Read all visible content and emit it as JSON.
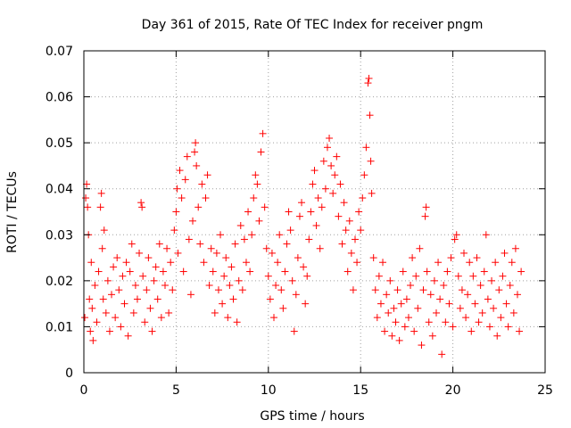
{
  "chart_data": {
    "type": "scatter",
    "title": "Day 361 of 2015, Rate Of TEC Index for receiver pngm",
    "xlabel": "GPS time / hours",
    "ylabel": "ROTI / TECUs",
    "xlim": [
      0,
      25
    ],
    "ylim": [
      0,
      0.07
    ],
    "xticks": [
      0,
      5,
      10,
      15,
      20,
      25
    ],
    "xtick_labels": [
      "0",
      "5",
      "10",
      "15",
      "20",
      "25"
    ],
    "yticks": [
      0,
      0.01,
      0.02,
      0.03,
      0.04,
      0.05,
      0.06,
      0.07
    ],
    "ytick_labels": [
      "0",
      "0.01",
      "0.02",
      "0.03",
      "0.04",
      "0.05",
      "0.06",
      "0.07"
    ],
    "grid": true,
    "marker": "plus",
    "series": [
      {
        "name": "ROTI",
        "color": "#ff0000",
        "points": [
          [
            0.05,
            0.012
          ],
          [
            0.1,
            0.038
          ],
          [
            0.15,
            0.041
          ],
          [
            0.2,
            0.036
          ],
          [
            0.25,
            0.03
          ],
          [
            0.3,
            0.016
          ],
          [
            0.35,
            0.009
          ],
          [
            0.4,
            0.024
          ],
          [
            0.45,
            0.014
          ],
          [
            0.5,
            0.007
          ],
          [
            0.6,
            0.019
          ],
          [
            0.7,
            0.011
          ],
          [
            0.8,
            0.022
          ],
          [
            0.9,
            0.036
          ],
          [
            0.95,
            0.039
          ],
          [
            1.0,
            0.027
          ],
          [
            1.05,
            0.016
          ],
          [
            1.1,
            0.031
          ],
          [
            1.2,
            0.013
          ],
          [
            1.3,
            0.02
          ],
          [
            1.4,
            0.009
          ],
          [
            1.5,
            0.017
          ],
          [
            1.6,
            0.023
          ],
          [
            1.7,
            0.012
          ],
          [
            1.8,
            0.025
          ],
          [
            1.9,
            0.018
          ],
          [
            2.0,
            0.01
          ],
          [
            2.1,
            0.021
          ],
          [
            2.2,
            0.015
          ],
          [
            2.3,
            0.024
          ],
          [
            2.4,
            0.008
          ],
          [
            2.5,
            0.022
          ],
          [
            2.6,
            0.028
          ],
          [
            2.7,
            0.013
          ],
          [
            2.8,
            0.019
          ],
          [
            2.9,
            0.016
          ],
          [
            3.0,
            0.026
          ],
          [
            3.1,
            0.037
          ],
          [
            3.15,
            0.036
          ],
          [
            3.2,
            0.021
          ],
          [
            3.3,
            0.011
          ],
          [
            3.4,
            0.018
          ],
          [
            3.5,
            0.025
          ],
          [
            3.6,
            0.014
          ],
          [
            3.7,
            0.009
          ],
          [
            3.8,
            0.02
          ],
          [
            3.9,
            0.023
          ],
          [
            4.0,
            0.016
          ],
          [
            4.1,
            0.028
          ],
          [
            4.2,
            0.012
          ],
          [
            4.3,
            0.022
          ],
          [
            4.4,
            0.019
          ],
          [
            4.5,
            0.027
          ],
          [
            4.6,
            0.013
          ],
          [
            4.7,
            0.024
          ],
          [
            4.8,
            0.018
          ],
          [
            4.9,
            0.031
          ],
          [
            5.0,
            0.035
          ],
          [
            5.05,
            0.04
          ],
          [
            5.1,
            0.026
          ],
          [
            5.2,
            0.044
          ],
          [
            5.3,
            0.038
          ],
          [
            5.4,
            0.022
          ],
          [
            5.5,
            0.042
          ],
          [
            5.6,
            0.047
          ],
          [
            5.7,
            0.029
          ],
          [
            5.8,
            0.017
          ],
          [
            5.9,
            0.033
          ],
          [
            6.0,
            0.048
          ],
          [
            6.05,
            0.05
          ],
          [
            6.1,
            0.045
          ],
          [
            6.2,
            0.036
          ],
          [
            6.3,
            0.028
          ],
          [
            6.4,
            0.041
          ],
          [
            6.5,
            0.024
          ],
          [
            6.6,
            0.038
          ],
          [
            6.7,
            0.043
          ],
          [
            6.8,
            0.019
          ],
          [
            6.9,
            0.027
          ],
          [
            7.0,
            0.022
          ],
          [
            7.1,
            0.013
          ],
          [
            7.2,
            0.026
          ],
          [
            7.3,
            0.018
          ],
          [
            7.4,
            0.03
          ],
          [
            7.5,
            0.015
          ],
          [
            7.6,
            0.021
          ],
          [
            7.7,
            0.025
          ],
          [
            7.8,
            0.012
          ],
          [
            7.9,
            0.019
          ],
          [
            8.0,
            0.023
          ],
          [
            8.1,
            0.016
          ],
          [
            8.2,
            0.028
          ],
          [
            8.3,
            0.011
          ],
          [
            8.4,
            0.02
          ],
          [
            8.5,
            0.032
          ],
          [
            8.6,
            0.018
          ],
          [
            8.7,
            0.029
          ],
          [
            8.8,
            0.024
          ],
          [
            8.9,
            0.035
          ],
          [
            9.0,
            0.022
          ],
          [
            9.1,
            0.03
          ],
          [
            9.2,
            0.038
          ],
          [
            9.3,
            0.043
          ],
          [
            9.4,
            0.041
          ],
          [
            9.5,
            0.033
          ],
          [
            9.6,
            0.048
          ],
          [
            9.7,
            0.052
          ],
          [
            9.8,
            0.036
          ],
          [
            9.9,
            0.027
          ],
          [
            10.0,
            0.021
          ],
          [
            10.1,
            0.016
          ],
          [
            10.2,
            0.026
          ],
          [
            10.3,
            0.012
          ],
          [
            10.4,
            0.019
          ],
          [
            10.5,
            0.024
          ],
          [
            10.6,
            0.03
          ],
          [
            10.7,
            0.018
          ],
          [
            10.8,
            0.014
          ],
          [
            10.9,
            0.022
          ],
          [
            11.0,
            0.028
          ],
          [
            11.1,
            0.035
          ],
          [
            11.2,
            0.031
          ],
          [
            11.3,
            0.02
          ],
          [
            11.4,
            0.009
          ],
          [
            11.5,
            0.017
          ],
          [
            11.6,
            0.025
          ],
          [
            11.7,
            0.034
          ],
          [
            11.8,
            0.037
          ],
          [
            11.9,
            0.023
          ],
          [
            12.0,
            0.015
          ],
          [
            12.1,
            0.021
          ],
          [
            12.2,
            0.029
          ],
          [
            12.3,
            0.035
          ],
          [
            12.4,
            0.041
          ],
          [
            12.5,
            0.044
          ],
          [
            12.6,
            0.032
          ],
          [
            12.7,
            0.038
          ],
          [
            12.8,
            0.027
          ],
          [
            12.9,
            0.036
          ],
          [
            13.0,
            0.046
          ],
          [
            13.1,
            0.04
          ],
          [
            13.2,
            0.049
          ],
          [
            13.3,
            0.051
          ],
          [
            13.4,
            0.045
          ],
          [
            13.5,
            0.039
          ],
          [
            13.6,
            0.043
          ],
          [
            13.7,
            0.047
          ],
          [
            13.8,
            0.034
          ],
          [
            13.9,
            0.041
          ],
          [
            14.0,
            0.028
          ],
          [
            14.1,
            0.037
          ],
          [
            14.2,
            0.031
          ],
          [
            14.3,
            0.022
          ],
          [
            14.4,
            0.033
          ],
          [
            14.5,
            0.026
          ],
          [
            14.6,
            0.018
          ],
          [
            14.7,
            0.029
          ],
          [
            14.8,
            0.024
          ],
          [
            14.9,
            0.035
          ],
          [
            15.0,
            0.031
          ],
          [
            15.1,
            0.038
          ],
          [
            15.2,
            0.043
          ],
          [
            15.3,
            0.049
          ],
          [
            15.4,
            0.063
          ],
          [
            15.45,
            0.064
          ],
          [
            15.5,
            0.056
          ],
          [
            15.55,
            0.046
          ],
          [
            15.6,
            0.039
          ],
          [
            15.7,
            0.025
          ],
          [
            15.8,
            0.018
          ],
          [
            15.9,
            0.012
          ],
          [
            16.0,
            0.021
          ],
          [
            16.1,
            0.015
          ],
          [
            16.2,
            0.024
          ],
          [
            16.3,
            0.009
          ],
          [
            16.4,
            0.017
          ],
          [
            16.5,
            0.013
          ],
          [
            16.6,
            0.02
          ],
          [
            16.7,
            0.008
          ],
          [
            16.8,
            0.014
          ],
          [
            16.9,
            0.011
          ],
          [
            17.0,
            0.018
          ],
          [
            17.1,
            0.007
          ],
          [
            17.2,
            0.015
          ],
          [
            17.3,
            0.022
          ],
          [
            17.4,
            0.01
          ],
          [
            17.5,
            0.016
          ],
          [
            17.6,
            0.012
          ],
          [
            17.7,
            0.019
          ],
          [
            17.8,
            0.025
          ],
          [
            17.9,
            0.009
          ],
          [
            18.0,
            0.021
          ],
          [
            18.1,
            0.014
          ],
          [
            18.2,
            0.027
          ],
          [
            18.3,
            0.006
          ],
          [
            18.4,
            0.018
          ],
          [
            18.5,
            0.034
          ],
          [
            18.55,
            0.036
          ],
          [
            18.6,
            0.022
          ],
          [
            18.7,
            0.011
          ],
          [
            18.8,
            0.017
          ],
          [
            18.9,
            0.008
          ],
          [
            19.0,
            0.02
          ],
          [
            19.1,
            0.013
          ],
          [
            19.2,
            0.024
          ],
          [
            19.3,
            0.016
          ],
          [
            19.4,
            0.004
          ],
          [
            19.5,
            0.019
          ],
          [
            19.6,
            0.011
          ],
          [
            19.7,
            0.022
          ],
          [
            19.8,
            0.015
          ],
          [
            19.9,
            0.025
          ],
          [
            20.0,
            0.01
          ],
          [
            20.1,
            0.029
          ],
          [
            20.2,
            0.03
          ],
          [
            20.3,
            0.021
          ],
          [
            20.4,
            0.014
          ],
          [
            20.5,
            0.018
          ],
          [
            20.6,
            0.026
          ],
          [
            20.7,
            0.012
          ],
          [
            20.8,
            0.017
          ],
          [
            20.9,
            0.024
          ],
          [
            21.0,
            0.009
          ],
          [
            21.1,
            0.021
          ],
          [
            21.2,
            0.015
          ],
          [
            21.3,
            0.025
          ],
          [
            21.4,
            0.011
          ],
          [
            21.5,
            0.019
          ],
          [
            21.6,
            0.013
          ],
          [
            21.7,
            0.022
          ],
          [
            21.8,
            0.03
          ],
          [
            21.9,
            0.016
          ],
          [
            22.0,
            0.01
          ],
          [
            22.1,
            0.02
          ],
          [
            22.2,
            0.014
          ],
          [
            22.3,
            0.024
          ],
          [
            22.4,
            0.008
          ],
          [
            22.5,
            0.018
          ],
          [
            22.6,
            0.012
          ],
          [
            22.7,
            0.021
          ],
          [
            22.8,
            0.026
          ],
          [
            22.9,
            0.015
          ],
          [
            23.0,
            0.01
          ],
          [
            23.1,
            0.019
          ],
          [
            23.2,
            0.024
          ],
          [
            23.3,
            0.013
          ],
          [
            23.4,
            0.027
          ],
          [
            23.5,
            0.017
          ],
          [
            23.6,
            0.009
          ],
          [
            23.7,
            0.022
          ]
        ]
      }
    ]
  }
}
